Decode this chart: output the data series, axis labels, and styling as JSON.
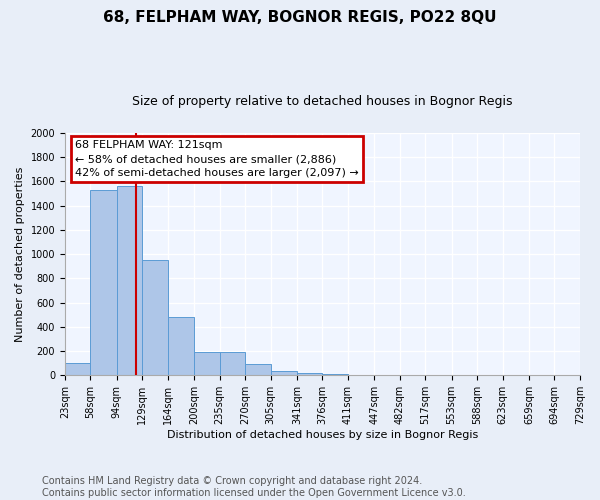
{
  "title": "68, FELPHAM WAY, BOGNOR REGIS, PO22 8QU",
  "subtitle": "Size of property relative to detached houses in Bognor Regis",
  "xlabel": "Distribution of detached houses by size in Bognor Regis",
  "ylabel": "Number of detached properties",
  "bin_edges": [
    23,
    58,
    94,
    129,
    164,
    200,
    235,
    270,
    305,
    341,
    376,
    411,
    447,
    482,
    517,
    553,
    588,
    623,
    659,
    694,
    729
  ],
  "bar_heights": [
    100,
    1530,
    1560,
    950,
    480,
    190,
    190,
    90,
    35,
    20,
    10,
    5,
    0,
    0,
    0,
    0,
    0,
    0,
    0,
    0
  ],
  "bar_color": "#aec6e8",
  "bar_edgecolor": "#5b9bd5",
  "property_size": 121,
  "vline_color": "#cc0000",
  "annotation_line1": "68 FELPHAM WAY: 121sqm",
  "annotation_line2": "← 58% of detached houses are smaller (2,886)",
  "annotation_line3": "42% of semi-detached houses are larger (2,097) →",
  "annotation_box_color": "#cc0000",
  "ylim": [
    0,
    2000
  ],
  "yticks": [
    0,
    200,
    400,
    600,
    800,
    1000,
    1200,
    1400,
    1600,
    1800,
    2000
  ],
  "footer_line1": "Contains HM Land Registry data © Crown copyright and database right 2024.",
  "footer_line2": "Contains public sector information licensed under the Open Government Licence v3.0.",
  "bg_color": "#e8eef8",
  "plot_bg_color": "#f0f5ff",
  "grid_color": "#ffffff",
  "title_fontsize": 11,
  "subtitle_fontsize": 9,
  "axis_label_fontsize": 8,
  "tick_fontsize": 7,
  "footer_fontsize": 7,
  "annotation_fontsize": 8
}
